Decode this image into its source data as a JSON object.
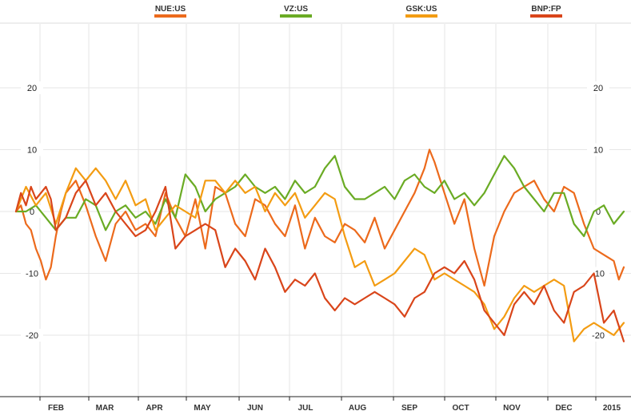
{
  "chart_data": {
    "type": "line",
    "title": "",
    "xlabel": "",
    "ylabel": "",
    "ylim": [
      -30,
      30
    ],
    "yticks": [
      20,
      10,
      0,
      -10,
      -20
    ],
    "grid": true,
    "legend_position": "top-center",
    "x_labels": [
      "FEB",
      "MAR",
      "APR",
      "MAY",
      "JUN",
      "JUL",
      "AUG",
      "SEP",
      "OCT",
      "NOV",
      "DEC",
      "2015"
    ],
    "x_range_months": [
      0.0,
      12.2
    ],
    "series": [
      {
        "name": "NUE:US",
        "color": "#ec6a1c",
        "x": [
          0.0,
          0.1,
          0.2,
          0.3,
          0.4,
          0.5,
          0.6,
          0.7,
          0.8,
          0.9,
          1.0,
          1.2,
          1.4,
          1.6,
          1.8,
          2.0,
          2.2,
          2.4,
          2.6,
          2.8,
          3.0,
          3.2,
          3.4,
          3.6,
          3.8,
          4.0,
          4.2,
          4.4,
          4.6,
          4.8,
          5.0,
          5.2,
          5.4,
          5.6,
          5.8,
          6.0,
          6.2,
          6.4,
          6.6,
          6.8,
          7.0,
          7.2,
          7.4,
          7.6,
          7.8,
          8.0,
          8.1,
          8.2,
          8.3,
          8.4,
          8.6,
          8.8,
          9.0,
          9.2,
          9.4,
          9.6,
          9.8,
          10.0,
          10.2,
          10.4,
          10.6,
          10.8,
          11.0,
          11.2,
          11.4,
          11.6,
          11.8,
          12.0,
          12.1,
          12.2
        ],
        "y": [
          0,
          1,
          -2,
          -3,
          -6,
          -8,
          -11,
          -9,
          -4,
          0,
          3,
          5,
          1,
          -4,
          -8,
          -2,
          0,
          -3,
          -2,
          -4,
          3,
          -1,
          -4,
          2,
          -6,
          4,
          3,
          -2,
          -4,
          2,
          1,
          -2,
          -4,
          1,
          -6,
          -1,
          -4,
          -5,
          -2,
          -3,
          -5,
          -1,
          -6,
          -3,
          0,
          3,
          5,
          7,
          10,
          8,
          3,
          -2,
          2,
          -6,
          -12,
          -4,
          0,
          3,
          4,
          5,
          2,
          0,
          4,
          3,
          -2,
          -6,
          -7,
          -8,
          -11,
          -9
        ]
      },
      {
        "name": "VZ:US",
        "color": "#6aab24",
        "x": [
          0.0,
          0.2,
          0.4,
          0.6,
          0.8,
          1.0,
          1.2,
          1.4,
          1.6,
          1.8,
          2.0,
          2.2,
          2.4,
          2.6,
          2.8,
          3.0,
          3.2,
          3.4,
          3.6,
          3.8,
          4.0,
          4.2,
          4.4,
          4.6,
          4.8,
          5.0,
          5.2,
          5.4,
          5.6,
          5.8,
          6.0,
          6.2,
          6.4,
          6.6,
          6.8,
          7.0,
          7.2,
          7.4,
          7.6,
          7.8,
          8.0,
          8.2,
          8.4,
          8.6,
          8.8,
          9.0,
          9.2,
          9.4,
          9.6,
          9.8,
          10.0,
          10.2,
          10.4,
          10.6,
          10.8,
          11.0,
          11.2,
          11.4,
          11.6,
          11.8,
          12.0,
          12.2
        ],
        "y": [
          0,
          0,
          1,
          -1,
          -3,
          -1,
          -1,
          2,
          1,
          -3,
          0,
          1,
          -1,
          0,
          -2,
          2,
          -1,
          6,
          4,
          0,
          2,
          3,
          4,
          6,
          4,
          3,
          4,
          2,
          5,
          3,
          4,
          7,
          9,
          4,
          2,
          2,
          3,
          4,
          2,
          5,
          6,
          4,
          3,
          5,
          2,
          3,
          1,
          3,
          6,
          9,
          7,
          4,
          2,
          0,
          3,
          3,
          -2,
          -4,
          0,
          1,
          -2,
          0
        ]
      },
      {
        "name": "GSK:US",
        "color": "#f39c12",
        "x": [
          0.0,
          0.1,
          0.2,
          0.4,
          0.6,
          0.8,
          1.0,
          1.2,
          1.4,
          1.6,
          1.8,
          2.0,
          2.2,
          2.4,
          2.6,
          2.8,
          3.0,
          3.2,
          3.4,
          3.6,
          3.8,
          4.0,
          4.2,
          4.4,
          4.6,
          4.8,
          5.0,
          5.2,
          5.4,
          5.6,
          5.8,
          6.0,
          6.2,
          6.4,
          6.6,
          6.8,
          7.0,
          7.2,
          7.4,
          7.6,
          7.8,
          8.0,
          8.2,
          8.4,
          8.6,
          8.8,
          9.0,
          9.2,
          9.4,
          9.6,
          9.8,
          10.0,
          10.2,
          10.4,
          10.6,
          10.8,
          11.0,
          11.2,
          11.4,
          11.6,
          11.8,
          12.0,
          12.2
        ],
        "y": [
          0,
          2,
          4,
          1,
          3,
          -2,
          3,
          7,
          5,
          7,
          5,
          2,
          5,
          1,
          2,
          -3,
          -1,
          1,
          0,
          -1,
          5,
          5,
          3,
          5,
          3,
          4,
          0,
          3,
          1,
          3,
          -1,
          1,
          3,
          2,
          -4,
          -9,
          -8,
          -12,
          -11,
          -10,
          -8,
          -6,
          -7,
          -11,
          -10,
          -11,
          -12,
          -13,
          -15,
          -19,
          -17,
          -14,
          -12,
          -13,
          -12,
          -11,
          -12,
          -21,
          -19,
          -18,
          -19,
          -20,
          -18
        ]
      },
      {
        "name": "BNP:FP",
        "color": "#d9451a",
        "x": [
          0.0,
          0.1,
          0.2,
          0.3,
          0.4,
          0.5,
          0.6,
          0.7,
          0.8,
          1.0,
          1.2,
          1.4,
          1.6,
          1.8,
          2.0,
          2.2,
          2.4,
          2.6,
          2.8,
          3.0,
          3.2,
          3.4,
          3.6,
          3.8,
          4.0,
          4.2,
          4.4,
          4.6,
          4.8,
          5.0,
          5.2,
          5.4,
          5.6,
          5.8,
          6.0,
          6.2,
          6.4,
          6.6,
          6.8,
          7.0,
          7.2,
          7.4,
          7.6,
          7.8,
          8.0,
          8.2,
          8.4,
          8.6,
          8.8,
          9.0,
          9.2,
          9.4,
          9.6,
          9.8,
          10.0,
          10.2,
          10.4,
          10.6,
          10.8,
          11.0,
          11.2,
          11.4,
          11.6,
          11.8,
          12.0,
          12.2
        ],
        "y": [
          0,
          3,
          1,
          4,
          2,
          3,
          4,
          2,
          -3,
          -1,
          3,
          5,
          1,
          3,
          0,
          -2,
          -4,
          -3,
          0,
          4,
          -6,
          -4,
          -3,
          -2,
          -3,
          -9,
          -6,
          -8,
          -11,
          -6,
          -9,
          -13,
          -11,
          -12,
          -10,
          -14,
          -16,
          -14,
          -15,
          -14,
          -13,
          -14,
          -15,
          -17,
          -14,
          -13,
          -10,
          -9,
          -10,
          -8,
          -11,
          -16,
          -18,
          -20,
          -15,
          -13,
          -15,
          -12,
          -16,
          -18,
          -13,
          -12,
          -10,
          -18,
          -16,
          -21
        ]
      }
    ]
  }
}
